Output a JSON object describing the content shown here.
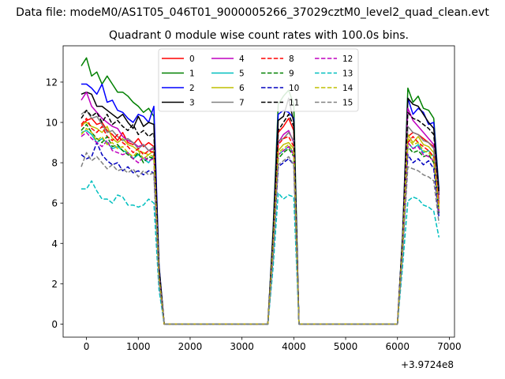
{
  "figure": {
    "suptitle": "Data file: modeM0/AS1T05_046T01_9000005266_37029cztM0_level2_quad_clean.evt",
    "title": "Quadrant 0 module wise count rates with 100.0s bins.",
    "x_offset_label": "+3.9724e8"
  },
  "chart_data": {
    "type": "line",
    "title": "Quadrant 0 module wise count rates with 100.0s bins.",
    "xlabel": "",
    "ylabel": "",
    "xlim": [
      -450,
      7100
    ],
    "ylim": [
      -0.65,
      13.8
    ],
    "x_ticks": [
      0,
      1000,
      2000,
      3000,
      4000,
      5000,
      6000,
      7000
    ],
    "x_tick_labels": [
      "0",
      "1000",
      "2000",
      "3000",
      "4000",
      "5000",
      "6000",
      "7000"
    ],
    "y_ticks": [
      0,
      2,
      4,
      6,
      8,
      10,
      12
    ],
    "y_tick_labels": [
      "0",
      "2",
      "4",
      "6",
      "8",
      "10",
      "12"
    ],
    "x_offset": "+3.9724e8",
    "legend_position": "upper-center",
    "legend_columns": 4,
    "grid": false,
    "x": [
      -100,
      0,
      100,
      200,
      300,
      400,
      500,
      600,
      700,
      800,
      900,
      1000,
      1100,
      1200,
      1300,
      1400,
      1500,
      1600,
      1700,
      1800,
      1900,
      2000,
      2100,
      2200,
      2300,
      2400,
      2500,
      2600,
      2700,
      2800,
      2900,
      3000,
      3100,
      3200,
      3300,
      3400,
      3500,
      3600,
      3700,
      3800,
      3900,
      4000,
      4100,
      4200,
      4300,
      4400,
      4500,
      4600,
      4700,
      4800,
      4900,
      5000,
      5100,
      5200,
      5300,
      5400,
      5500,
      5600,
      5700,
      5800,
      5900,
      6000,
      6100,
      6200,
      6300,
      6400,
      6500,
      6600,
      6700,
      6800
    ],
    "series": [
      {
        "name": "0",
        "color": "#ff0000",
        "dash": "solid",
        "values": [
          9.8,
          10.1,
          10.2,
          9.9,
          10.0,
          9.6,
          9.4,
          9.1,
          9.5,
          9.0,
          8.9,
          9.2,
          8.8,
          9.0,
          8.8,
          2.5,
          0,
          0,
          0,
          0,
          0,
          0,
          0,
          0,
          0,
          0,
          0,
          0,
          0,
          0,
          0,
          0,
          0,
          0,
          0,
          0,
          0,
          4.2,
          9.5,
          9.8,
          10.2,
          9.6,
          0,
          0,
          0,
          0,
          0,
          0,
          0,
          0,
          0,
          0,
          0,
          0,
          0,
          0,
          0,
          0,
          0,
          0,
          0,
          0,
          4.0,
          9.3,
          9.5,
          9.4,
          9.2,
          9.0,
          8.8,
          6.0
        ]
      },
      {
        "name": "1",
        "color": "#008000",
        "dash": "solid",
        "values": [
          12.8,
          13.2,
          12.3,
          12.5,
          11.9,
          12.3,
          11.9,
          11.5,
          11.5,
          11.3,
          11.0,
          10.8,
          10.5,
          10.7,
          10.3,
          2.9,
          0,
          0,
          0,
          0,
          0,
          0,
          0,
          0,
          0,
          0,
          0,
          0,
          0,
          0,
          0,
          0,
          0,
          0,
          0,
          0,
          0,
          4.7,
          10.9,
          11.3,
          11.6,
          10.9,
          0,
          0,
          0,
          0,
          0,
          0,
          0,
          0,
          0,
          0,
          0,
          0,
          0,
          0,
          0,
          0,
          0,
          0,
          0,
          0,
          4.5,
          11.7,
          11.0,
          11.3,
          10.7,
          10.6,
          10.2,
          6.7
        ]
      },
      {
        "name": "2",
        "color": "#0000ff",
        "dash": "solid",
        "values": [
          11.9,
          11.9,
          11.7,
          11.4,
          11.9,
          11.0,
          11.1,
          10.6,
          10.5,
          10.2,
          10.0,
          10.4,
          10.3,
          10.0,
          10.8,
          2.9,
          0,
          0,
          0,
          0,
          0,
          0,
          0,
          0,
          0,
          0,
          0,
          0,
          0,
          0,
          0,
          0,
          0,
          0,
          0,
          0,
          0,
          4.5,
          10.4,
          10.6,
          10.5,
          10.2,
          0,
          0,
          0,
          0,
          0,
          0,
          0,
          0,
          0,
          0,
          0,
          0,
          0,
          0,
          0,
          0,
          0,
          0,
          0,
          0,
          4.4,
          11.2,
          10.4,
          10.7,
          10.5,
          9.9,
          10.0,
          6.6
        ]
      },
      {
        "name": "3",
        "color": "#000000",
        "dash": "solid",
        "values": [
          11.4,
          11.5,
          11.4,
          10.8,
          10.8,
          10.6,
          10.4,
          10.2,
          10.4,
          10.0,
          9.7,
          10.3,
          9.8,
          10.0,
          9.9,
          2.8,
          0,
          0,
          0,
          0,
          0,
          0,
          0,
          0,
          0,
          0,
          0,
          0,
          0,
          0,
          0,
          0,
          0,
          0,
          0,
          0,
          0,
          4.4,
          10.1,
          10.3,
          11.2,
          10.0,
          0,
          0,
          0,
          0,
          0,
          0,
          0,
          0,
          0,
          0,
          0,
          0,
          0,
          0,
          0,
          0,
          0,
          0,
          0,
          0,
          4.3,
          11.2,
          10.9,
          10.8,
          10.4,
          10.0,
          9.7,
          6.4
        ]
      },
      {
        "name": "4",
        "color": "#bf00bf",
        "dash": "solid",
        "values": [
          11.1,
          11.5,
          10.8,
          10.5,
          10.2,
          10.0,
          9.8,
          9.7,
          9.3,
          9.1,
          9.0,
          8.8,
          8.9,
          8.6,
          8.7,
          2.5,
          0,
          0,
          0,
          0,
          0,
          0,
          0,
          0,
          0,
          0,
          0,
          0,
          0,
          0,
          0,
          0,
          0,
          0,
          0,
          0,
          0,
          4.0,
          9.0,
          9.4,
          9.6,
          9.0,
          0,
          0,
          0,
          0,
          0,
          0,
          0,
          0,
          0,
          0,
          0,
          0,
          0,
          0,
          0,
          0,
          0,
          0,
          0,
          0,
          4.1,
          10.7,
          10.1,
          9.8,
          9.5,
          9.2,
          8.9,
          6.2
        ]
      },
      {
        "name": "5",
        "color": "#00bfbf",
        "dash": "solid",
        "values": [
          9.5,
          9.6,
          9.4,
          9.0,
          9.2,
          9.0,
          8.7,
          8.8,
          8.6,
          8.5,
          8.2,
          8.4,
          8.2,
          8.0,
          8.4,
          2.4,
          0,
          0,
          0,
          0,
          0,
          0,
          0,
          0,
          0,
          0,
          0,
          0,
          0,
          0,
          0,
          0,
          0,
          0,
          0,
          0,
          0,
          3.8,
          8.4,
          8.6,
          8.8,
          8.5,
          0,
          0,
          0,
          0,
          0,
          0,
          0,
          0,
          0,
          0,
          0,
          0,
          0,
          0,
          0,
          0,
          0,
          0,
          0,
          0,
          3.9,
          9.0,
          8.7,
          8.9,
          8.5,
          8.6,
          8.3,
          5.7
        ]
      },
      {
        "name": "6",
        "color": "#bfbf00",
        "dash": "solid",
        "values": [
          9.9,
          10.0,
          9.8,
          9.7,
          9.5,
          9.8,
          9.2,
          9.0,
          9.2,
          8.9,
          8.8,
          8.6,
          8.5,
          8.4,
          8.6,
          2.4,
          0,
          0,
          0,
          0,
          0,
          0,
          0,
          0,
          0,
          0,
          0,
          0,
          0,
          0,
          0,
          0,
          0,
          0,
          0,
          0,
          0,
          3.9,
          8.6,
          8.9,
          9.0,
          8.7,
          0,
          0,
          0,
          0,
          0,
          0,
          0,
          0,
          0,
          0,
          0,
          0,
          0,
          0,
          0,
          0,
          0,
          0,
          0,
          0,
          4.0,
          9.4,
          9.0,
          9.3,
          8.9,
          8.8,
          8.5,
          5.8
        ]
      },
      {
        "name": "7",
        "color": "#808080",
        "dash": "solid",
        "values": [
          10.4,
          10.6,
          10.2,
          10.3,
          9.9,
          9.5,
          9.6,
          9.3,
          9.1,
          9.2,
          9.0,
          8.7,
          8.9,
          8.6,
          8.8,
          2.5,
          0,
          0,
          0,
          0,
          0,
          0,
          0,
          0,
          0,
          0,
          0,
          0,
          0,
          0,
          0,
          0,
          0,
          0,
          0,
          0,
          0,
          4.0,
          9.1,
          9.2,
          9.5,
          9.1,
          0,
          0,
          0,
          0,
          0,
          0,
          0,
          0,
          0,
          0,
          0,
          0,
          0,
          0,
          0,
          0,
          0,
          0,
          0,
          0,
          4.1,
          9.8,
          9.5,
          9.4,
          9.1,
          9.0,
          8.7,
          6.0
        ]
      },
      {
        "name": "8",
        "color": "#ff0000",
        "dash": "dashed",
        "values": [
          9.9,
          10.2,
          9.7,
          9.5,
          9.8,
          9.3,
          9.1,
          9.4,
          9.0,
          8.8,
          8.5,
          8.7,
          8.4,
          8.6,
          8.5,
          2.4,
          0,
          0,
          0,
          0,
          0,
          0,
          0,
          0,
          0,
          0,
          0,
          0,
          0,
          0,
          0,
          0,
          0,
          0,
          0,
          0,
          0,
          3.9,
          8.9,
          9.2,
          9.3,
          8.8,
          0,
          0,
          0,
          0,
          0,
          0,
          0,
          0,
          0,
          0,
          0,
          0,
          0,
          0,
          0,
          0,
          0,
          0,
          0,
          0,
          4.0,
          9.0,
          9.3,
          9.0,
          8.8,
          8.6,
          8.3,
          5.9
        ]
      },
      {
        "name": "9",
        "color": "#008000",
        "dash": "dashed",
        "values": [
          9.6,
          9.9,
          9.5,
          9.2,
          9.0,
          9.3,
          8.8,
          8.9,
          8.6,
          8.4,
          8.2,
          8.5,
          8.0,
          8.3,
          8.2,
          2.3,
          0,
          0,
          0,
          0,
          0,
          0,
          0,
          0,
          0,
          0,
          0,
          0,
          0,
          0,
          0,
          0,
          0,
          0,
          0,
          0,
          0,
          3.8,
          8.2,
          8.5,
          8.7,
          8.3,
          0,
          0,
          0,
          0,
          0,
          0,
          0,
          0,
          0,
          0,
          0,
          0,
          0,
          0,
          0,
          0,
          0,
          0,
          0,
          0,
          3.8,
          8.8,
          8.5,
          8.6,
          8.3,
          8.4,
          8.0,
          5.5
        ]
      },
      {
        "name": "10",
        "color": "#0000bf",
        "dash": "dashed",
        "values": [
          8.4,
          8.2,
          8.3,
          9.0,
          8.4,
          8.1,
          7.9,
          8.0,
          7.6,
          7.8,
          7.5,
          7.6,
          7.4,
          7.6,
          7.5,
          2.1,
          0,
          0,
          0,
          0,
          0,
          0,
          0,
          0,
          0,
          0,
          0,
          0,
          0,
          0,
          0,
          0,
          0,
          0,
          0,
          0,
          0,
          3.3,
          7.8,
          8.0,
          8.2,
          7.9,
          0,
          0,
          0,
          0,
          0,
          0,
          0,
          0,
          0,
          0,
          0,
          0,
          0,
          0,
          0,
          0,
          0,
          0,
          0,
          0,
          3.5,
          8.4,
          8.0,
          8.2,
          7.9,
          8.1,
          7.7,
          5.3
        ]
      },
      {
        "name": "11",
        "color": "#000000",
        "dash": "dashed",
        "values": [
          10.2,
          10.6,
          10.3,
          10.5,
          10.0,
          10.4,
          9.9,
          10.1,
          9.8,
          9.6,
          9.9,
          9.4,
          9.6,
          9.3,
          9.5,
          2.7,
          0,
          0,
          0,
          0,
          0,
          0,
          0,
          0,
          0,
          0,
          0,
          0,
          0,
          0,
          0,
          0,
          0,
          0,
          0,
          0,
          0,
          4.2,
          9.6,
          10.0,
          10.4,
          9.8,
          0,
          0,
          0,
          0,
          0,
          0,
          0,
          0,
          0,
          0,
          0,
          0,
          0,
          0,
          0,
          0,
          0,
          0,
          0,
          0,
          4.3,
          10.5,
          10.2,
          10.1,
          9.9,
          9.7,
          9.4,
          6.5
        ]
      },
      {
        "name": "12",
        "color": "#bf00bf",
        "dash": "dashed",
        "values": [
          9.3,
          9.5,
          9.2,
          9.0,
          8.8,
          9.1,
          8.6,
          8.5,
          8.4,
          8.5,
          8.2,
          8.0,
          8.3,
          8.1,
          8.2,
          2.3,
          0,
          0,
          0,
          0,
          0,
          0,
          0,
          0,
          0,
          0,
          0,
          0,
          0,
          0,
          0,
          0,
          0,
          0,
          0,
          0,
          0,
          3.7,
          8.4,
          8.6,
          8.8,
          8.4,
          0,
          0,
          0,
          0,
          0,
          0,
          0,
          0,
          0,
          0,
          0,
          0,
          0,
          0,
          0,
          0,
          0,
          0,
          0,
          0,
          3.8,
          9.0,
          8.7,
          8.8,
          8.4,
          8.3,
          8.1,
          5.6
        ]
      },
      {
        "name": "13",
        "color": "#00bfbf",
        "dash": "dashed",
        "values": [
          6.7,
          6.7,
          7.1,
          6.6,
          6.2,
          6.2,
          6.0,
          6.4,
          6.3,
          5.9,
          5.9,
          5.8,
          5.9,
          6.2,
          6.0,
          1.7,
          0,
          0,
          0,
          0,
          0,
          0,
          0,
          0,
          0,
          0,
          0,
          0,
          0,
          0,
          0,
          0,
          0,
          0,
          0,
          0,
          0,
          2.8,
          6.5,
          6.2,
          6.4,
          6.3,
          0,
          0,
          0,
          0,
          0,
          0,
          0,
          0,
          0,
          0,
          0,
          0,
          0,
          0,
          0,
          0,
          0,
          0,
          0,
          0,
          2.9,
          6.1,
          6.3,
          6.2,
          5.9,
          5.8,
          5.6,
          4.3
        ]
      },
      {
        "name": "14",
        "color": "#bfbf00",
        "dash": "dashed",
        "values": [
          9.4,
          9.7,
          9.5,
          9.1,
          9.3,
          8.9,
          9.0,
          8.7,
          8.8,
          8.5,
          8.3,
          8.6,
          8.2,
          8.4,
          8.3,
          2.3,
          0,
          0,
          0,
          0,
          0,
          0,
          0,
          0,
          0,
          0,
          0,
          0,
          0,
          0,
          0,
          0,
          0,
          0,
          0,
          0,
          0,
          3.8,
          8.5,
          8.7,
          8.9,
          8.5,
          0,
          0,
          0,
          0,
          0,
          0,
          0,
          0,
          0,
          0,
          0,
          0,
          0,
          0,
          0,
          0,
          0,
          0,
          0,
          0,
          3.9,
          9.2,
          8.9,
          9.0,
          8.6,
          8.5,
          8.2,
          5.7
        ]
      },
      {
        "name": "15",
        "color": "#808080",
        "dash": "dashed",
        "values": [
          7.8,
          8.5,
          8.1,
          8.3,
          8.0,
          7.7,
          7.9,
          7.6,
          7.7,
          7.5,
          7.7,
          7.3,
          7.6,
          7.4,
          7.5,
          2.1,
          0,
          0,
          0,
          0,
          0,
          0,
          0,
          0,
          0,
          0,
          0,
          0,
          0,
          0,
          0,
          0,
          0,
          0,
          0,
          0,
          0,
          3.4,
          7.9,
          8.1,
          8.3,
          7.9,
          0,
          0,
          0,
          0,
          0,
          0,
          0,
          0,
          0,
          0,
          0,
          0,
          0,
          0,
          0,
          0,
          0,
          0,
          0,
          0,
          3.5,
          7.8,
          7.7,
          7.6,
          7.4,
          7.3,
          7.1,
          5.0
        ]
      }
    ]
  }
}
